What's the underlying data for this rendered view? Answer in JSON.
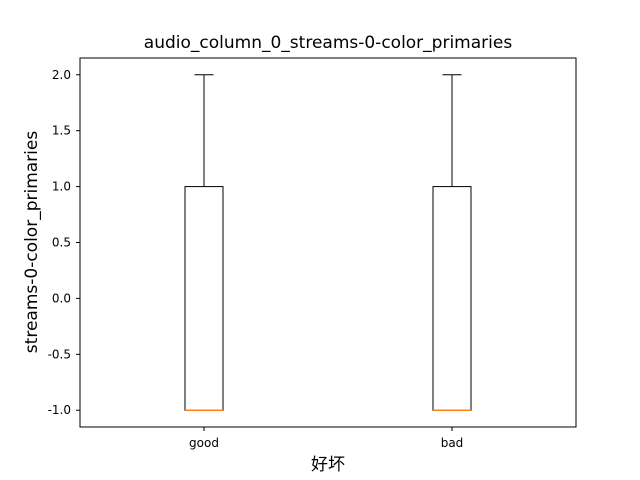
{
  "chart_data": {
    "type": "box",
    "title": "audio_column_0_streams-0-color_primaries",
    "xlabel": "好坏",
    "ylabel": "streams-0-color_primaries",
    "ylim": [
      -1.15,
      2.15
    ],
    "yticks": [
      -1.0,
      -0.5,
      0.0,
      0.5,
      1.0,
      1.5,
      2.0
    ],
    "ytick_labels": [
      "-1.0",
      "-0.5",
      "0.0",
      "0.5",
      "1.0",
      "1.5",
      "2.0"
    ],
    "categories": [
      "good",
      "bad"
    ],
    "boxes": [
      {
        "category": "good",
        "whisker_low": -1.0,
        "q1": -1.0,
        "median": -1.0,
        "q3": 1.0,
        "whisker_high": 2.0
      },
      {
        "category": "bad",
        "whisker_low": -1.0,
        "q1": -1.0,
        "median": -1.0,
        "q3": 1.0,
        "whisker_high": 2.0
      }
    ],
    "grid": false,
    "colors": {
      "box": "#000000",
      "median": "#ff7f0e",
      "background": "#ffffff"
    }
  }
}
